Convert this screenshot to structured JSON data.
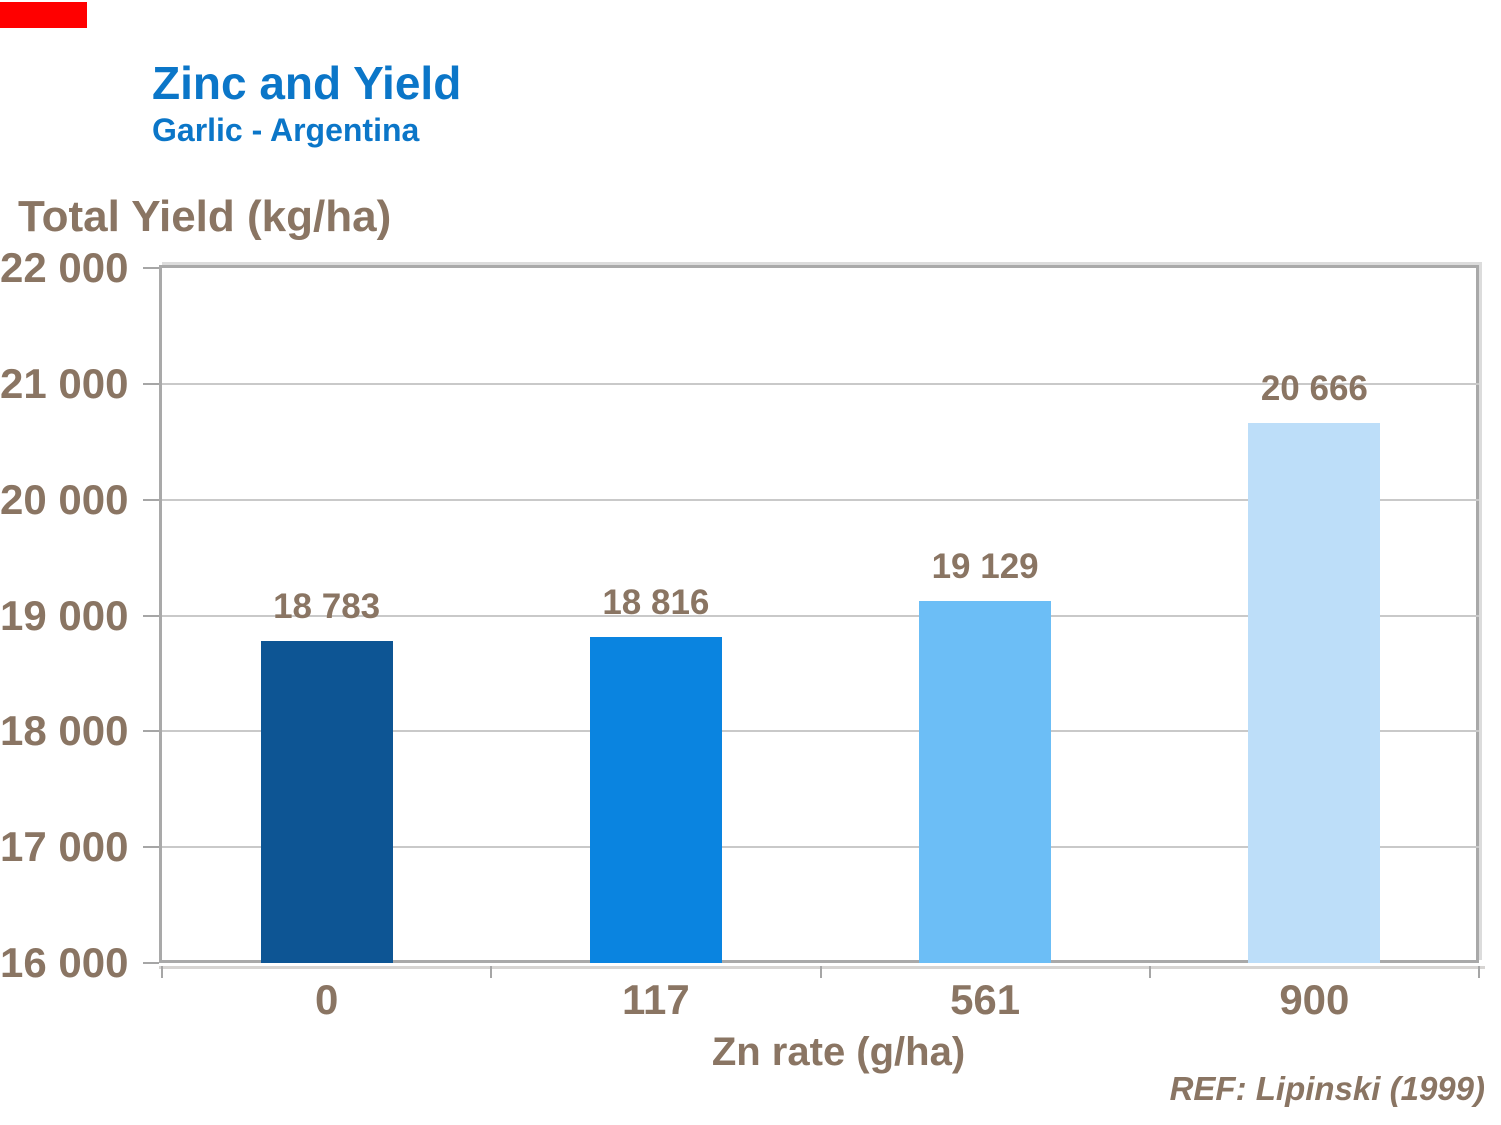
{
  "page": {
    "title": "Zinc and Yield",
    "subtitle": "Garlic - Argentina",
    "accent_color": "#0b76c8",
    "text_color": "#8a7563",
    "red_marker_color": "#ff0000"
  },
  "chart_data": {
    "type": "bar",
    "title": "Zinc and Yield",
    "subtitle": "Garlic - Argentina",
    "xlabel": "Zn rate (g/ha)",
    "ylabel": "Total Yield (kg/ha)",
    "categories": [
      "0",
      "117",
      "561",
      "900"
    ],
    "values": [
      18783,
      18816,
      19129,
      20666
    ],
    "value_labels": [
      "18 783",
      "18 816",
      "19 129",
      "20 666"
    ],
    "bar_colors": [
      "#0d5594",
      "#0a84e0",
      "#6cbef6",
      "#bddef9"
    ],
    "ylim": [
      16000,
      22000
    ],
    "ytick_step": 1000,
    "yticks": [
      22000,
      21000,
      20000,
      19000,
      18000,
      17000,
      16000
    ],
    "ytick_labels": [
      "22 000",
      "21 000",
      "20 000",
      "19 000",
      "18 000",
      "17 000",
      "16 000"
    ],
    "grid": "horizontal",
    "gridline_color": "#c9c9c9",
    "axis_color": "#a9a9a9",
    "legend": "none",
    "reference": "REF: Lipinski (1999)"
  }
}
